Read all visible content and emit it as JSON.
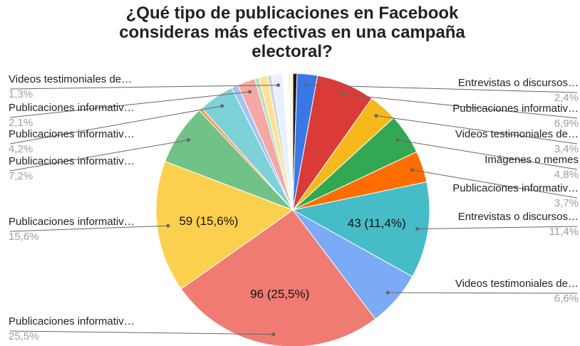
{
  "chart_data": {
    "type": "pie",
    "title": [
      "¿Qué tipo de publicaciones en Facebook",
      "consideras más efectivas en una campaña",
      "electoral?"
    ],
    "slices": [
      {
        "label": "",
        "percent": 0.5,
        "color": "#1a1a1a",
        "pct_label": ""
      },
      {
        "label": "Entrevistas o discursos…",
        "percent": 2.4,
        "color": "#3b78e7",
        "pct_label": "2,4%"
      },
      {
        "label": "Publicaciones informativ…",
        "percent": 6.9,
        "color": "#db3b36",
        "pct_label": "6,9%"
      },
      {
        "label": "Videos testimoniales de…",
        "percent": 3.4,
        "color": "#f7b81c",
        "pct_label": "3,4%"
      },
      {
        "label": "Imágenes o memes",
        "percent": 4.8,
        "color": "#33a852",
        "pct_label": "4,8%"
      },
      {
        "label": "Publicaciones informativ…",
        "percent": 3.7,
        "color": "#ff6d01",
        "pct_label": "3,7%"
      },
      {
        "label": "Entrevistas o discursos…",
        "percent": 11.4,
        "color": "#46bdc6",
        "pct_label": "11,4%",
        "value_label": "43 (11,4%)"
      },
      {
        "label": "Videos testimoniales de…",
        "percent": 6.6,
        "color": "#7baaf7",
        "pct_label": "6,6%"
      },
      {
        "label": "Publicaciones informativ…",
        "percent": 25.5,
        "color": "#f07b72",
        "pct_label": "25,5%",
        "value_label": "96 (25,5%)"
      },
      {
        "label": "Publicaciones informativ…",
        "percent": 15.6,
        "color": "#fcd04f",
        "pct_label": "15,6%",
        "value_label": "59 (15,6%)"
      },
      {
        "label": "Publicaciones informativ…",
        "percent": 7.2,
        "color": "#71c287",
        "pct_label": "7,2%"
      },
      {
        "label": "",
        "percent": 0.4,
        "color": "#ff994d",
        "pct_label": ""
      },
      {
        "label": "Publicaciones informativ…",
        "percent": 4.2,
        "color": "#7ed1d7",
        "pct_label": "4,2%"
      },
      {
        "label": "",
        "percent": 0.8,
        "color": "#a7c3f5",
        "pct_label": ""
      },
      {
        "label": "Publicaciones informativ…",
        "percent": 2.1,
        "color": "#f4a8a3",
        "pct_label": "2,1%"
      },
      {
        "label": "",
        "percent": 0.5,
        "color": "#b8e0c2",
        "pct_label": ""
      },
      {
        "label": "",
        "percent": 1.0,
        "color": "#fde293",
        "pct_label": ""
      },
      {
        "label": "",
        "percent": 0.5,
        "color": "#cfd8dc",
        "pct_label": ""
      },
      {
        "label": "Videos testimoniales de…",
        "percent": 1.3,
        "color": "#e8f0fe",
        "pct_label": "1,3%"
      },
      {
        "label": "",
        "percent": 0.6,
        "color": "#ffffff",
        "pct_label": ""
      },
      {
        "label": "",
        "percent": 0.6,
        "color": "#fef7e0",
        "pct_label": ""
      }
    ]
  }
}
